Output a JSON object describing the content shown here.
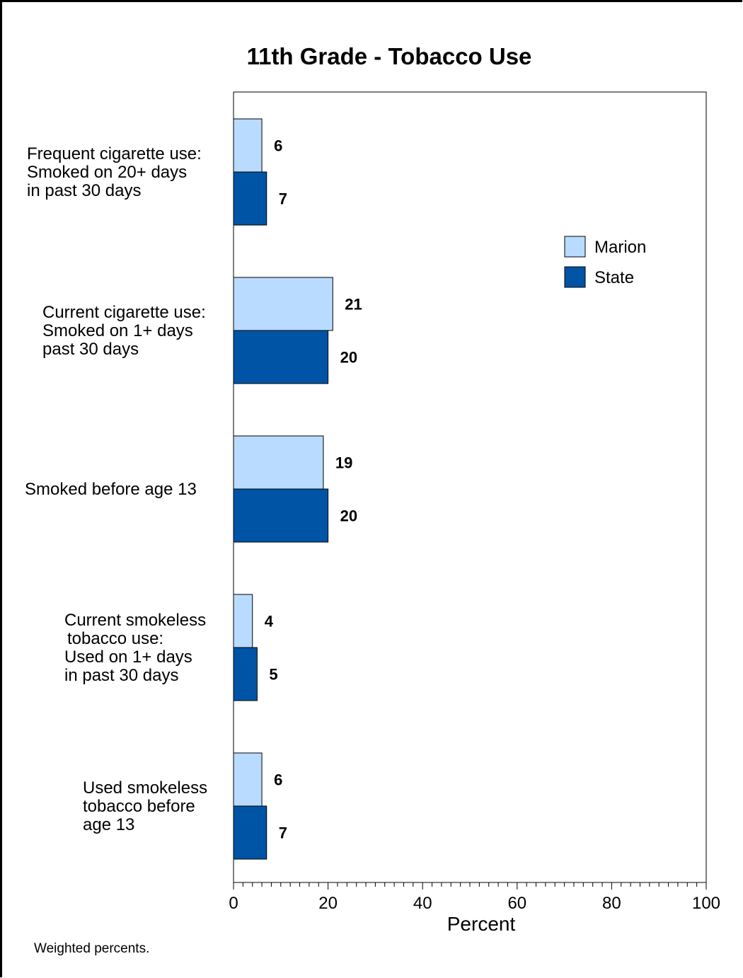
{
  "chart_data": {
    "type": "bar",
    "orientation": "horizontal",
    "title": "11th Grade - Tobacco Use",
    "xlabel": "Percent",
    "xlim": [
      0,
      100
    ],
    "xticks": [
      "0",
      "20",
      "40",
      "60",
      "80",
      "100"
    ],
    "categories": [
      [
        "Frequent cigarette use:",
        "Smoked on 20+ days",
        "in past 30 days"
      ],
      [
        "Current cigarette use:",
        "Smoked on 1+ days",
        "past 30 days"
      ],
      [
        "Smoked before age 13"
      ],
      [
        "Current smokeless",
        "tobacco use:",
        "Used on 1+ days",
        "in past 30 days"
      ],
      [
        "Used smokeless",
        "tobacco before",
        "age 13"
      ]
    ],
    "series": [
      {
        "name": "Marion",
        "color": "#b9dbff",
        "values": [
          6,
          21,
          19,
          4,
          6
        ]
      },
      {
        "name": "State",
        "color": "#0054a6",
        "values": [
          7,
          20,
          20,
          5,
          7
        ]
      }
    ],
    "legend_position": "top-right",
    "note": "Weighted percents."
  }
}
